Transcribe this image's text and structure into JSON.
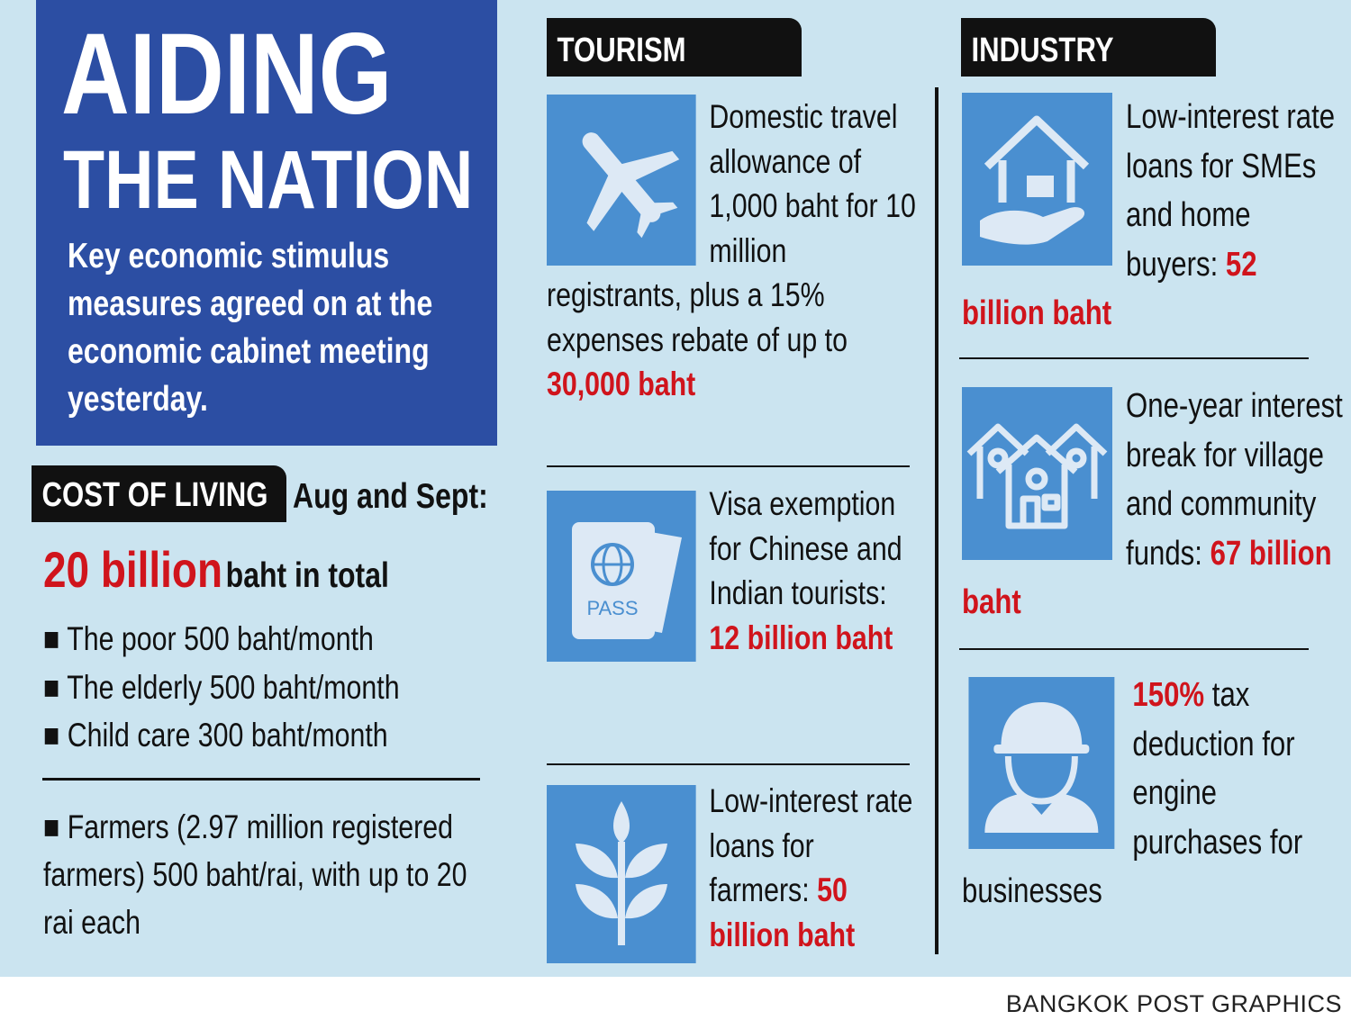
{
  "title": {
    "lines": [
      "AIDING",
      "THE NATION"
    ],
    "subtitle": "Key economic stimulus measures agreed on at the economic cabinet meeting yesterday."
  },
  "cost_of_living": {
    "label": "COST OF LIVING",
    "period": "Aug and Sept:",
    "total_amount": "20 billion",
    "total_suffix": "baht in total",
    "items": [
      "The poor 500 baht/month",
      "The elderly 500 baht/month",
      "Child care 300 baht/month"
    ],
    "farmers": "Farmers (2.97 million registered farmers) 500 baht/rai, with up to 20 rai each"
  },
  "tourism": {
    "heading": "TOURISM",
    "items": [
      {
        "text": "Domestic travel allowance of 1,000 baht for 10 million registrants, plus a 15% expenses rebate of up to",
        "highlight": "30,000 baht"
      },
      {
        "text": "Visa exemption for Chinese and Indian tourists:",
        "highlight": "12 billion baht",
        "icon_label": "PASS"
      },
      {
        "text": "Low-interest rate loans for farmers:",
        "highlight": "50 billion baht"
      }
    ]
  },
  "industry": {
    "heading": "INDUSTRY",
    "items": [
      {
        "text": "Low-interest rate loans for SMEs and home buyers:",
        "highlight": "52 billion baht"
      },
      {
        "text": "One-year interest break for village and community funds:",
        "highlight": "67 billion baht"
      },
      {
        "highlight": "150%",
        "text": "tax deduction for engine purchases for businesses"
      }
    ]
  },
  "credit": "BANGKOK POST GRAPHICS"
}
